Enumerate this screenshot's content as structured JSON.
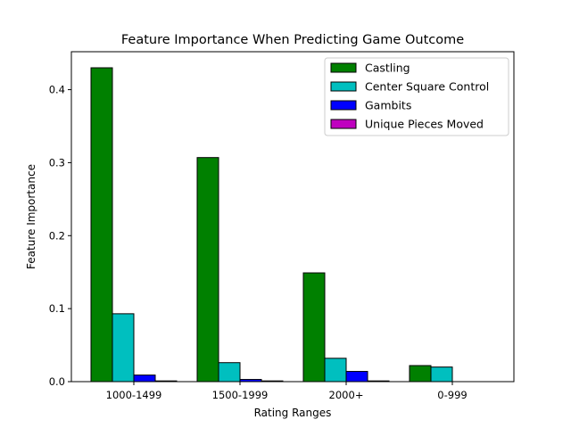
{
  "chart_data": {
    "type": "bar",
    "title": "Feature Importance When Predicting Game Outcome",
    "xlabel": "Rating Ranges",
    "ylabel": "Feature Importance",
    "categories": [
      "1000-1499",
      "1500-1999",
      "2000+",
      "0-999"
    ],
    "series": [
      {
        "name": "Castling",
        "color": "#008000",
        "values": [
          0.43,
          0.307,
          0.149,
          0.022
        ]
      },
      {
        "name": "Center Square Control",
        "color": "#00bfbf",
        "values": [
          0.093,
          0.026,
          0.032,
          0.02
        ]
      },
      {
        "name": "Gambits",
        "color": "#0000ff",
        "values": [
          0.009,
          0.003,
          0.014,
          0.0
        ]
      },
      {
        "name": "Unique Pieces Moved",
        "color": "#bf00bf",
        "values": [
          0.001,
          0.001,
          0.001,
          0.0
        ]
      }
    ],
    "ylim": [
      0,
      0.452
    ],
    "yticks": [
      0.0,
      0.1,
      0.2,
      0.3,
      0.4
    ],
    "ytick_labels": [
      "0.0",
      "0.1",
      "0.2",
      "0.3",
      "0.4"
    ],
    "grid": false,
    "legend_position": "top-right"
  }
}
